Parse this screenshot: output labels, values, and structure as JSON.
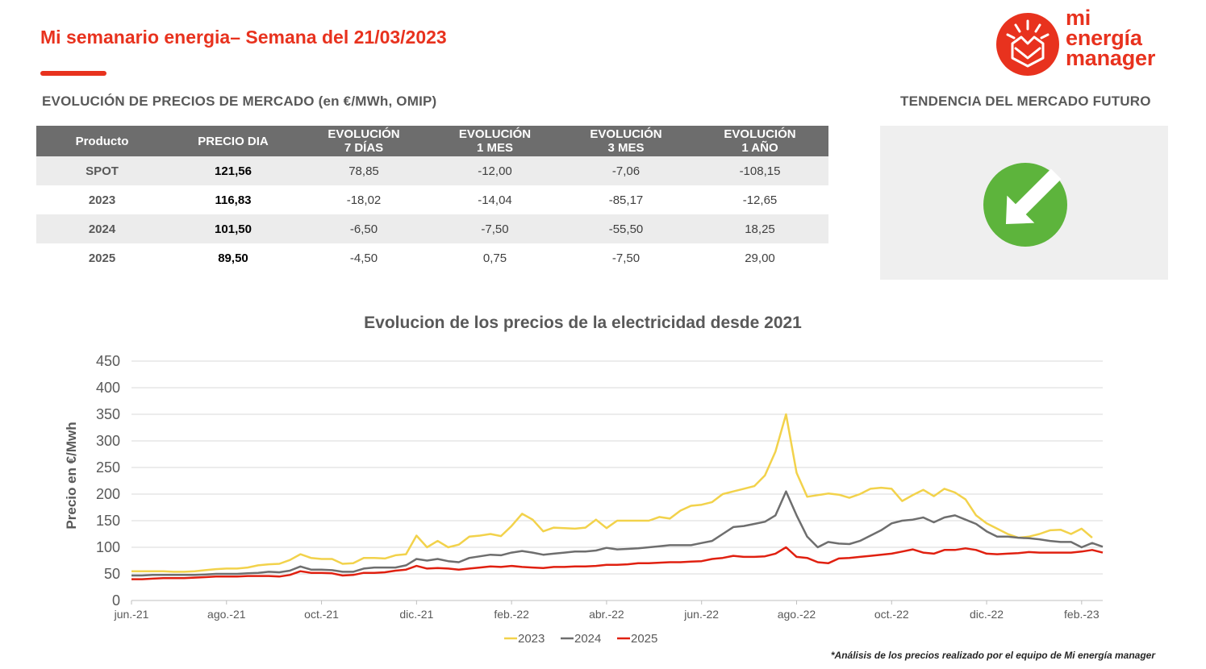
{
  "header": {
    "title": "Mi semanario energia– Semana del 21/03/2023",
    "logo_lines": [
      "mi",
      "energía",
      "manager"
    ]
  },
  "market": {
    "title": "EVOLUCIÓN DE PRECIOS DE MERCADO (en €/MWh, OMIP)",
    "columns": [
      [
        "Producto"
      ],
      [
        "PRECIO DIA"
      ],
      [
        "EVOLUCIÓN",
        "7 DÍAS"
      ],
      [
        "EVOLUCIÓN",
        "1 MES"
      ],
      [
        "EVOLUCIÓN",
        "3 MES"
      ],
      [
        "EVOLUCIÓN",
        "1 AÑO"
      ]
    ],
    "rows": [
      [
        "SPOT",
        "121,56",
        "78,85",
        "-12,00",
        "-7,06",
        "-108,15"
      ],
      [
        "2023",
        "116,83",
        "-18,02",
        "-14,04",
        "-85,17",
        "-12,65"
      ],
      [
        "2024",
        "101,50",
        "-6,50",
        "-7,50",
        "-55,50",
        "18,25"
      ],
      [
        "2025",
        "89,50",
        "-4,50",
        "0,75",
        "-7,50",
        "29,00"
      ]
    ]
  },
  "trend": {
    "title": "TENDENCIA DEL MERCADO FUTURO",
    "icon": "arrow-down-right-icon",
    "color": "#5db43c"
  },
  "colors": {
    "brand": "#e8321e",
    "table_header": "#6d6d6d",
    "row_shade": "#ececec"
  },
  "chart_data": {
    "type": "line",
    "title": "Evolucion de los precios de la electricidad desde 2021",
    "ylabel": "Precio en €/Mwh",
    "xlabel": "",
    "ylim": [
      0,
      450
    ],
    "yticks": [
      0,
      50,
      100,
      150,
      200,
      250,
      300,
      350,
      400,
      450
    ],
    "grid": true,
    "legend_position": "bottom",
    "x_start": "jun.-21",
    "x_end": "mar.-23",
    "x_tick_labels": [
      "jun.-21",
      "ago.-21",
      "oct.-21",
      "dic.-21",
      "feb.-22",
      "abr.-22",
      "jun.-22",
      "ago.-22",
      "oct.-22",
      "dic.-22",
      "feb.-23"
    ],
    "x_tick_positions": [
      0,
      9,
      18,
      27,
      36,
      45,
      54,
      63,
      72,
      81,
      90
    ],
    "series": [
      {
        "name": "2023",
        "color": "#f2d24b",
        "values": [
          55,
          55,
          55,
          55,
          54,
          54,
          55,
          57,
          59,
          60,
          60,
          62,
          66,
          68,
          69,
          76,
          87,
          80,
          78,
          78,
          69,
          70,
          80,
          80,
          79,
          85,
          87,
          122,
          100,
          112,
          100,
          105,
          120,
          122,
          125,
          121,
          140,
          163,
          152,
          130,
          137,
          136,
          135,
          137,
          152,
          136,
          150,
          150,
          150,
          150,
          157,
          154,
          169,
          178,
          180,
          185,
          200,
          205,
          210,
          215,
          235,
          280,
          350,
          240,
          195,
          198,
          201,
          199,
          193,
          200,
          210,
          212,
          210,
          187,
          198,
          208,
          196,
          210,
          203,
          190,
          160,
          145,
          135,
          125,
          118,
          120,
          125,
          132,
          133,
          125,
          135,
          118
        ]
      },
      {
        "name": "2024",
        "color": "#6e6e6e",
        "values": [
          47,
          47,
          48,
          48,
          48,
          48,
          48,
          49,
          50,
          50,
          50,
          51,
          52,
          54,
          53,
          56,
          64,
          58,
          58,
          57,
          54,
          54,
          60,
          62,
          62,
          62,
          66,
          78,
          75,
          78,
          74,
          72,
          80,
          83,
          86,
          85,
          90,
          93,
          90,
          86,
          88,
          90,
          92,
          92,
          94,
          99,
          96,
          97,
          98,
          100,
          102,
          104,
          104,
          104,
          108,
          112,
          125,
          138,
          140,
          144,
          148,
          160,
          205,
          160,
          120,
          100,
          110,
          107,
          106,
          112,
          122,
          132,
          145,
          150,
          152,
          156,
          147,
          156,
          160,
          152,
          144,
          130,
          120,
          120,
          118,
          117,
          115,
          112,
          110,
          110,
          100,
          108,
          101
        ]
      },
      {
        "name": "2025",
        "color": "#e02010",
        "values": [
          40,
          40,
          41,
          42,
          42,
          42,
          43,
          44,
          45,
          45,
          45,
          46,
          46,
          46,
          45,
          48,
          55,
          52,
          52,
          51,
          47,
          48,
          52,
          52,
          53,
          56,
          58,
          65,
          60,
          61,
          60,
          58,
          60,
          62,
          64,
          63,
          65,
          63,
          62,
          61,
          63,
          63,
          64,
          64,
          65,
          67,
          67,
          68,
          70,
          70,
          71,
          72,
          72,
          73,
          74,
          78,
          80,
          84,
          82,
          82,
          83,
          88,
          100,
          82,
          80,
          72,
          70,
          79,
          80,
          82,
          84,
          86,
          88,
          92,
          96,
          90,
          88,
          95,
          95,
          98,
          95,
          88,
          87,
          88,
          89,
          91,
          90,
          90,
          90,
          90,
          92,
          95,
          90
        ]
      }
    ]
  },
  "footnote": "*Análisis de los precios realizado por el equipo de Mi energía manager"
}
